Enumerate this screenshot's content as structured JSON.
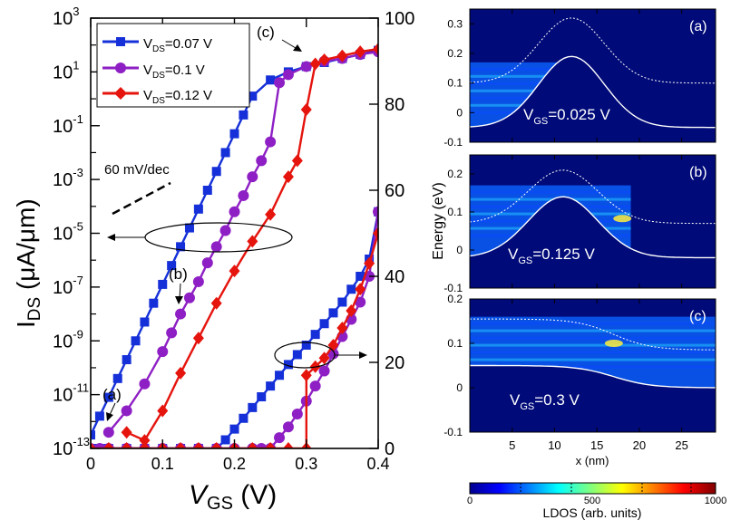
{
  "chart_data": [
    {
      "type": "line",
      "panel": "left",
      "yscale": "log",
      "xlabel_main": "V",
      "xlabel_sub": "GS",
      "xlabel_tail": " (V)",
      "ylabel_main": "I",
      "ylabel_sub": "DS",
      "ylabel_tail": " (μA/μm)",
      "xlim": [
        0,
        0.4
      ],
      "ylim_left_exp": [
        -13,
        3
      ],
      "ylim_right": [
        0,
        100
      ],
      "x_ticks": [
        "0",
        "0.1",
        "0.2",
        "0.3",
        "0.4"
      ],
      "y_ticks_exp": [
        "3",
        "1",
        "-1",
        "-3",
        "-5",
        "-7",
        "-9",
        "-11",
        "-13"
      ],
      "y_ticks_right": [
        "0",
        "20",
        "40",
        "60",
        "80",
        "100"
      ],
      "legend": [
        {
          "label_pre": "V",
          "label_sub": "DS",
          "label_post": "=0.07 V"
        },
        {
          "label_pre": "V",
          "label_sub": "DS",
          "label_post": "=0.1 V"
        },
        {
          "label_pre": "V",
          "label_sub": "DS",
          "label_post": "=0.12 V"
        }
      ],
      "annotations": {
        "slope": "60 mV/dec",
        "a": "(a)",
        "b": "(b)",
        "c": "(c)"
      },
      "series": [
        {
          "name": "VDS=0.07 V",
          "color": "#1530d8",
          "marker": "square",
          "log_x": [
            0,
            0.0125,
            0.025,
            0.0375,
            0.05,
            0.0625,
            0.075,
            0.0875,
            0.1,
            0.1125,
            0.125,
            0.1375,
            0.15,
            0.1625,
            0.175,
            0.1875,
            0.2,
            0.2125,
            0.225,
            0.25,
            0.275,
            0.3,
            0.325,
            0.35,
            0.375,
            0.4
          ],
          "log_exp": [
            -12.5,
            -11.8,
            -11.1,
            -10.4,
            -9.7,
            -9.0,
            -8.3,
            -7.6,
            -6.9,
            -6.2,
            -5.5,
            -4.8,
            -4.1,
            -3.4,
            -2.7,
            -2.0,
            -1.3,
            -0.6,
            0.1,
            0.7,
            1.0,
            1.2,
            1.35,
            1.5,
            1.65,
            1.8
          ],
          "lin_x": [
            0,
            0.0125,
            0.025,
            0.05,
            0.075,
            0.1,
            0.125,
            0.15,
            0.175,
            0.1875,
            0.2,
            0.2125,
            0.225,
            0.2375,
            0.25,
            0.2625,
            0.275,
            0.2875,
            0.3,
            0.3125,
            0.325,
            0.3375,
            0.35,
            0.3625,
            0.375,
            0.3875,
            0.4
          ],
          "lin_y": [
            0,
            0,
            0,
            0,
            0,
            0,
            0,
            0,
            0,
            2,
            4.5,
            7,
            9.5,
            12,
            14.5,
            17,
            19.5,
            21.8,
            24,
            26.5,
            29,
            31.5,
            34,
            37,
            40,
            44,
            55
          ]
        },
        {
          "name": "VDS=0.1 V",
          "color": "#8e1fc4",
          "marker": "circle",
          "log_x": [
            0.025,
            0.05,
            0.075,
            0.1,
            0.1125,
            0.125,
            0.1375,
            0.15,
            0.1625,
            0.175,
            0.1875,
            0.2,
            0.2125,
            0.225,
            0.2375,
            0.25,
            0.2625,
            0.275,
            0.3,
            0.325,
            0.35,
            0.375,
            0.4
          ],
          "log_exp": [
            -12.4,
            -11.6,
            -10.6,
            -9.4,
            -8.7,
            -8.0,
            -7.4,
            -6.8,
            -6.1,
            -5.5,
            -4.9,
            -4.2,
            -3.6,
            -2.9,
            -2.3,
            -1.6,
            0.6,
            0.9,
            1.2,
            1.4,
            1.5,
            1.65,
            1.75
          ],
          "lin_x": [
            0,
            0.0125,
            0.025,
            0.05,
            0.075,
            0.1,
            0.125,
            0.15,
            0.175,
            0.2,
            0.225,
            0.2375,
            0.25,
            0.2625,
            0.275,
            0.2875,
            0.3,
            0.3125,
            0.325,
            0.3375,
            0.35,
            0.3625,
            0.375,
            0.3875,
            0.4
          ],
          "lin_y": [
            0,
            0,
            0,
            0,
            0,
            0,
            0,
            0,
            0,
            0,
            0,
            0,
            0,
            2.5,
            5,
            8,
            11,
            14.5,
            18,
            22,
            26,
            30,
            34,
            40,
            55
          ]
        },
        {
          "name": "VDS=0.12 V",
          "color": "#e5140d",
          "marker": "diamond",
          "log_x": [
            0.05,
            0.075,
            0.1,
            0.125,
            0.15,
            0.175,
            0.2,
            0.225,
            0.25,
            0.275,
            0.2875,
            0.3,
            0.3125,
            0.325,
            0.35,
            0.375,
            0.4
          ],
          "log_exp": [
            -12.4,
            -12.7,
            -11.6,
            -10.2,
            -8.9,
            -7.6,
            -6.4,
            -5.3,
            -4.3,
            -2.9,
            -2.3,
            -0.4,
            1.3,
            1.45,
            1.6,
            1.75,
            1.85
          ],
          "lin_x": [
            0,
            0.025,
            0.05,
            0.075,
            0.1,
            0.125,
            0.15,
            0.175,
            0.2,
            0.225,
            0.25,
            0.275,
            0.3,
            0.3,
            0.3125,
            0.325,
            0.3375,
            0.35,
            0.3625,
            0.375,
            0.3875,
            0.4
          ],
          "lin_y": [
            0,
            0,
            0,
            0,
            0,
            0,
            0,
            0,
            0,
            0,
            0,
            0,
            0,
            17,
            19,
            21,
            24,
            28,
            32,
            37,
            43,
            50
          ]
        }
      ]
    },
    {
      "type": "heatmap",
      "panel": "right",
      "xlabel": "x (nm)",
      "ylabel": "Energy (eV)",
      "xlim": [
        0,
        29
      ],
      "x_ticks": [
        "5",
        "10",
        "15",
        "20",
        "25"
      ],
      "subplots": [
        {
          "label": "(a)",
          "vgs_pre": "V",
          "vgs_sub": "GS",
          "vgs_post": "=0.025 V",
          "ylim": [
            -0.1,
            0.35
          ],
          "y_ticks": [
            "0.3",
            "0.2",
            "0.1",
            "0",
            "-0.1"
          ]
        },
        {
          "label": "(b)",
          "vgs_pre": "V",
          "vgs_sub": "GS",
          "vgs_post": "=0.125 V",
          "ylim": [
            -0.1,
            0.25
          ],
          "y_ticks": [
            "0.2",
            "0.1",
            "0",
            "-0.1"
          ]
        },
        {
          "label": "(c)",
          "vgs_pre": "V",
          "vgs_sub": "GS",
          "vgs_post": "=0.3 V",
          "ylim": [
            -0.1,
            0.2
          ],
          "y_ticks": [
            "0.2",
            "0.1",
            "0",
            "-0.1"
          ]
        }
      ],
      "colorbar": {
        "label": "LDOS (arb. units)",
        "ticks": [
          "0",
          "500",
          "1000"
        ],
        "range": [
          0,
          1000
        ]
      }
    }
  ]
}
